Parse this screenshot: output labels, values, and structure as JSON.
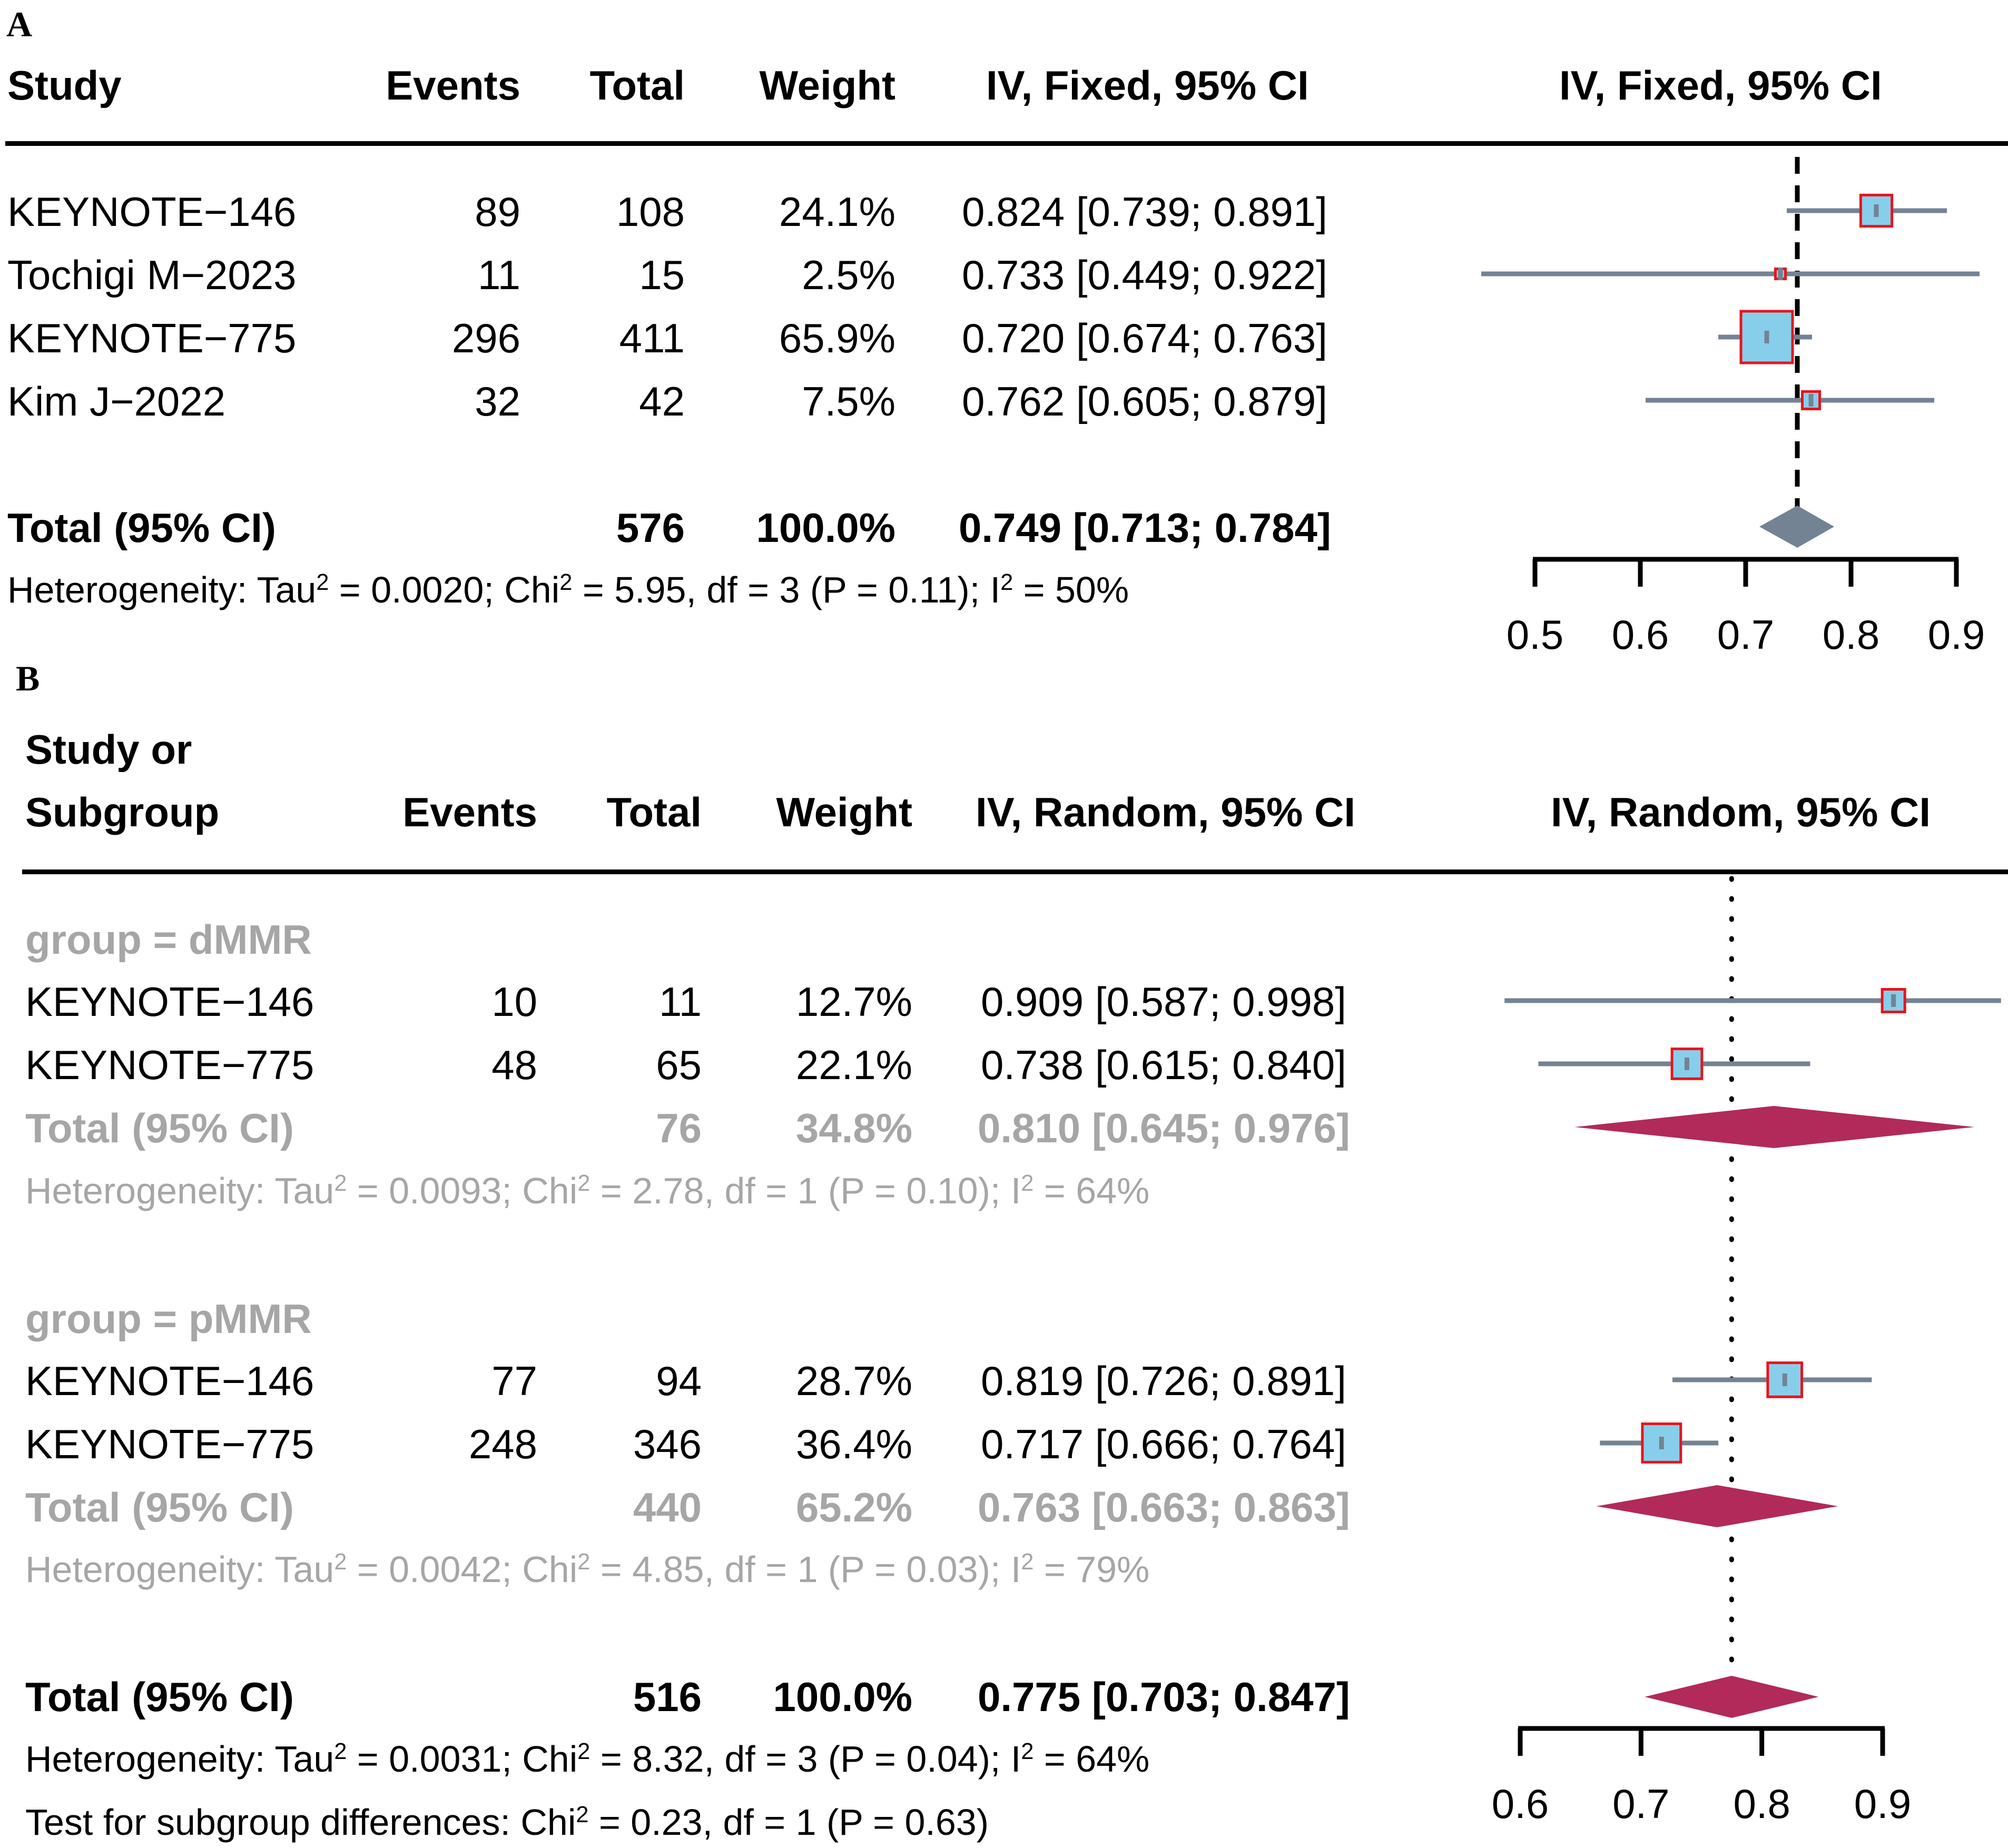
{
  "chart_data": [
    {
      "type": "forest",
      "panel": "A",
      "columns": {
        "study": "Study",
        "events": "Events",
        "total": "Total",
        "weight": "Weight",
        "ci": "IV, Fixed, 95% CI",
        "plot": "IV, Fixed, 95% CI"
      },
      "studies": [
        {
          "name": "KEYNOTE−146",
          "events": "89",
          "total": "108",
          "weight": "24.1%",
          "ci_text": "0.824 [0.739; 0.891]",
          "est": 0.824,
          "lo": 0.739,
          "hi": 0.891,
          "w": 24.1
        },
        {
          "name": "Tochigi M−2023",
          "events": "11",
          "total": "15",
          "weight": "2.5%",
          "ci_text": "0.733 [0.449; 0.922]",
          "est": 0.733,
          "lo": 0.449,
          "hi": 0.922,
          "w": 2.5
        },
        {
          "name": "KEYNOTE−775",
          "events": "296",
          "total": "411",
          "weight": "65.9%",
          "ci_text": "0.720 [0.674; 0.763]",
          "est": 0.72,
          "lo": 0.674,
          "hi": 0.763,
          "w": 65.9
        },
        {
          "name": "Kim J−2022",
          "events": "32",
          "total": "42",
          "weight": "7.5%",
          "ci_text": "0.762 [0.605; 0.879]",
          "est": 0.762,
          "lo": 0.605,
          "hi": 0.879,
          "w": 7.5
        }
      ],
      "total": {
        "label": "Total (95% CI)",
        "total": "576",
        "weight": "100.0%",
        "ci_text": "0.749 [0.713; 0.784]",
        "est": 0.749,
        "lo": 0.713,
        "hi": 0.784
      },
      "heterogeneity": {
        "prefix": "Heterogeneity: Tau",
        "tau2": "2",
        "mid1": " = 0.0020; Chi",
        "chi2": "2",
        "mid2": " = 5.95, df = 3 (P = 0.11); I",
        "i2": "2",
        "suffix": " = 50%"
      },
      "axis": {
        "xlim": [
          0.5,
          0.9
        ],
        "ticks": [
          0.5,
          0.6,
          0.7,
          0.8,
          0.9
        ],
        "tick_labels": [
          "0.5",
          "0.6",
          "0.7",
          "0.8",
          "0.9"
        ],
        "ref_line": 0.749
      }
    },
    {
      "type": "forest",
      "panel": "B",
      "columns": {
        "study_line1": "Study or",
        "study_line2": "Subgroup",
        "events": "Events",
        "total": "Total",
        "weight": "Weight",
        "ci": "IV, Random, 95% CI",
        "plot": "IV, Random, 95% CI"
      },
      "subgroups": [
        {
          "label": "group = dMMR",
          "studies": [
            {
              "name": "KEYNOTE−146",
              "events": "10",
              "total": "11",
              "weight": "12.7%",
              "ci_text": "0.909 [0.587; 0.998]",
              "est": 0.909,
              "lo": 0.587,
              "hi": 0.998,
              "w": 12.7
            },
            {
              "name": "KEYNOTE−775",
              "events": "48",
              "total": "65",
              "weight": "22.1%",
              "ci_text": "0.738 [0.615; 0.840]",
              "est": 0.738,
              "lo": 0.615,
              "hi": 0.84,
              "w": 22.1
            }
          ],
          "total": {
            "label": "Total (95% CI)",
            "total": "76",
            "weight": "34.8%",
            "ci_text": "0.810 [0.645; 0.976]",
            "est": 0.81,
            "lo": 0.645,
            "hi": 0.976
          },
          "heterogeneity": {
            "prefix": "Heterogeneity: Tau",
            "tau2": "2",
            "mid1": " = 0.0093; Chi",
            "chi2": "2",
            "mid2": " = 2.78, df = 1 (P = 0.10); I",
            "i2": "2",
            "suffix": " = 64%"
          }
        },
        {
          "label": "group = pMMR",
          "studies": [
            {
              "name": "KEYNOTE−146",
              "events": "77",
              "total": "94",
              "weight": "28.7%",
              "ci_text": "0.819 [0.726; 0.891]",
              "est": 0.819,
              "lo": 0.726,
              "hi": 0.891,
              "w": 28.7
            },
            {
              "name": "KEYNOTE−775",
              "events": "248",
              "total": "346",
              "weight": "36.4%",
              "ci_text": "0.717 [0.666; 0.764]",
              "est": 0.717,
              "lo": 0.666,
              "hi": 0.764,
              "w": 36.4
            }
          ],
          "total": {
            "label": "Total (95% CI)",
            "total": "440",
            "weight": "65.2%",
            "ci_text": "0.763 [0.663; 0.863]",
            "est": 0.763,
            "lo": 0.663,
            "hi": 0.863
          },
          "heterogeneity": {
            "prefix": "Heterogeneity: Tau",
            "tau2": "2",
            "mid1": " = 0.0042; Chi",
            "chi2": "2",
            "mid2": " = 4.85, df = 1 (P = 0.03); I",
            "i2": "2",
            "suffix": " = 79%"
          }
        }
      ],
      "total": {
        "label": "Total (95% CI)",
        "total": "516",
        "weight": "100.0%",
        "ci_text": "0.775 [0.703; 0.847]",
        "est": 0.775,
        "lo": 0.703,
        "hi": 0.847
      },
      "heterogeneity": {
        "prefix": "Heterogeneity: Tau",
        "tau2": "2",
        "mid1": " = 0.0031; Chi",
        "chi2": "2",
        "mid2": " = 8.32, df = 3 (P = 0.04); I",
        "i2": "2",
        "suffix": " = 64%"
      },
      "subgroup_test": {
        "prefix": "Test for subgroup differences: Chi",
        "chi2": "2",
        "suffix": " = 0.23, df = 1 (P = 0.63)"
      },
      "axis": {
        "xlim": [
          0.6,
          0.9
        ],
        "ticks": [
          0.6,
          0.7,
          0.8,
          0.9
        ],
        "tick_labels": [
          "0.6",
          "0.7",
          "0.8",
          "0.9"
        ],
        "ref_line": 0.775
      }
    }
  ],
  "style": {
    "line_color": "#738394",
    "box_fill": "#87ceeb",
    "box_stroke": "#e8141c",
    "diamond_fixed": "#738394",
    "diamond_random": "#b12a5a",
    "grey_text": "#a6a6a6"
  }
}
